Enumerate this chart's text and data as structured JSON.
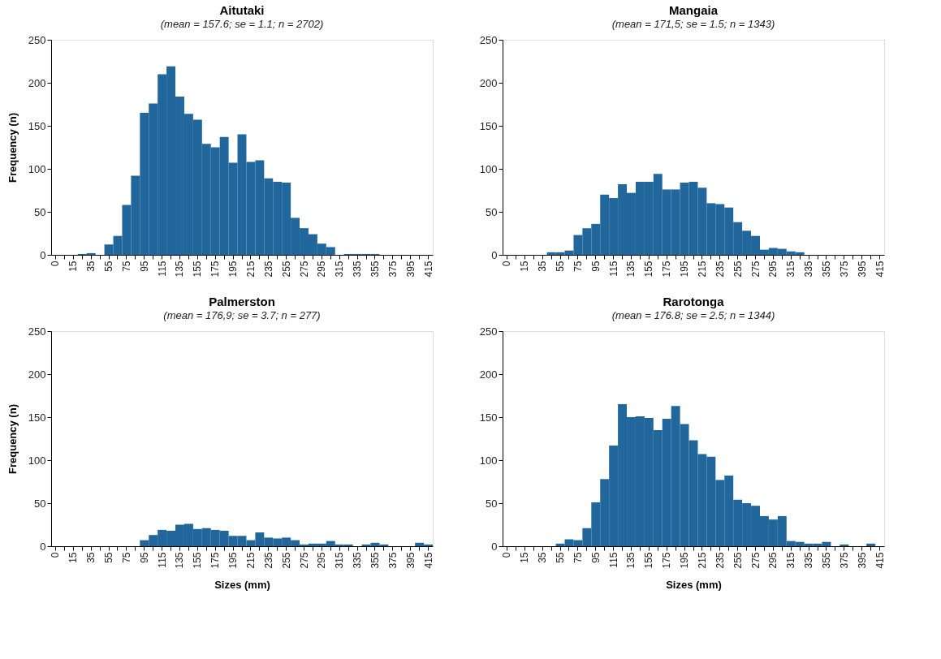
{
  "chart_data": [
    {
      "type": "bar",
      "title": "Aitutaki",
      "subtitle": "(mean = 157.6;  se = 1.1;  n = 2702)",
      "ylabel": "Frequency (n)",
      "categories": [
        "0",
        null,
        "15",
        null,
        "35",
        null,
        "55",
        null,
        "75",
        null,
        "95",
        null,
        "115",
        null,
        "135",
        null,
        "155",
        null,
        "175",
        null,
        "195",
        null,
        "215",
        null,
        "235",
        null,
        "255",
        null,
        "275",
        null,
        "295",
        null,
        "315",
        null,
        "335",
        null,
        "355",
        null,
        "375",
        null,
        "395",
        null,
        "415"
      ],
      "values": [
        0,
        0,
        0,
        1,
        2,
        0,
        12,
        22,
        58,
        92,
        165,
        176,
        210,
        219,
        184,
        164,
        157,
        129,
        125,
        137,
        107,
        140,
        108,
        110,
        89,
        85,
        84,
        43,
        31,
        24,
        13,
        9,
        0,
        1,
        1,
        1,
        1,
        0,
        0,
        0,
        0,
        0,
        0
      ],
      "color": "#22679c",
      "ylim": [
        0,
        250
      ],
      "yticks": [
        0,
        50,
        100,
        150,
        200,
        250
      ],
      "grid": false
    },
    {
      "type": "bar",
      "title": "Mangaia",
      "subtitle": "(mean = 171,5;  se = 1.5;  n = 1343)",
      "categories": [
        "0",
        null,
        "15",
        null,
        "35",
        null,
        "55",
        null,
        "75",
        null,
        "95",
        null,
        "115",
        null,
        "135",
        null,
        "155",
        null,
        "175",
        null,
        "195",
        null,
        "215",
        null,
        "235",
        null,
        "255",
        null,
        "275",
        null,
        "295",
        null,
        "315",
        null,
        "335",
        null,
        "355",
        null,
        "375",
        null,
        "395",
        null,
        "415"
      ],
      "values": [
        0,
        0,
        0,
        0,
        0,
        3,
        3,
        5,
        23,
        31,
        36,
        70,
        66,
        82,
        72,
        85,
        85,
        94,
        76,
        76,
        84,
        85,
        78,
        60,
        59,
        55,
        38,
        28,
        22,
        6,
        8,
        7,
        4,
        3,
        0,
        0,
        0,
        0,
        0,
        0,
        0,
        0,
        0
      ],
      "color": "#22679c",
      "ylim": [
        0,
        250
      ],
      "yticks": [
        0,
        50,
        100,
        150,
        200,
        250
      ],
      "grid": false
    },
    {
      "type": "bar",
      "title": "Palmerston",
      "subtitle": "(mean = 176,9;  se = 3.7;  n = 277)",
      "xlabel": "Sizes (mm)",
      "ylabel": "Frequency (n)",
      "categories": [
        "0",
        null,
        "15",
        null,
        "35",
        null,
        "55",
        null,
        "75",
        null,
        "95",
        null,
        "115",
        null,
        "135",
        null,
        "155",
        null,
        "175",
        null,
        "195",
        null,
        "215",
        null,
        "235",
        null,
        "255",
        null,
        "275",
        null,
        "295",
        null,
        "315",
        null,
        "335",
        null,
        "355",
        null,
        "375",
        null,
        "395",
        null,
        "415"
      ],
      "values": [
        0,
        0,
        0,
        0,
        0,
        0,
        0,
        0,
        0,
        0,
        7,
        13,
        19,
        18,
        25,
        26,
        20,
        21,
        19,
        18,
        12,
        12,
        7,
        16,
        10,
        9,
        10,
        7,
        2,
        3,
        3,
        6,
        2,
        2,
        0,
        2,
        4,
        2,
        0,
        0,
        0,
        4,
        2
      ],
      "color": "#22679c",
      "ylim": [
        0,
        250
      ],
      "yticks": [
        0,
        50,
        100,
        150,
        200,
        250
      ],
      "grid": false
    },
    {
      "type": "bar",
      "title": "Rarotonga",
      "subtitle": "(mean = 176.8;  se = 2.5;  n = 1344)",
      "xlabel": "Sizes (mm)",
      "categories": [
        "0",
        null,
        "15",
        null,
        "35",
        null,
        "55",
        null,
        "75",
        null,
        "95",
        null,
        "115",
        null,
        "135",
        null,
        "155",
        null,
        "175",
        null,
        "195",
        null,
        "215",
        null,
        "235",
        null,
        "255",
        null,
        "275",
        null,
        "295",
        null,
        "315",
        null,
        "335",
        null,
        "355",
        null,
        "375",
        null,
        "395",
        null,
        "415"
      ],
      "values": [
        0,
        0,
        0,
        0,
        0,
        0,
        3,
        8,
        7,
        21,
        51,
        78,
        117,
        165,
        150,
        151,
        149,
        135,
        148,
        163,
        142,
        123,
        107,
        104,
        77,
        82,
        54,
        50,
        47,
        35,
        31,
        35,
        6,
        5,
        3,
        3,
        5,
        0,
        2,
        0,
        0,
        3,
        0
      ],
      "color": "#22679c",
      "ylim": [
        0,
        250
      ],
      "yticks": [
        0,
        50,
        100,
        150,
        200,
        250
      ],
      "grid": false
    }
  ]
}
